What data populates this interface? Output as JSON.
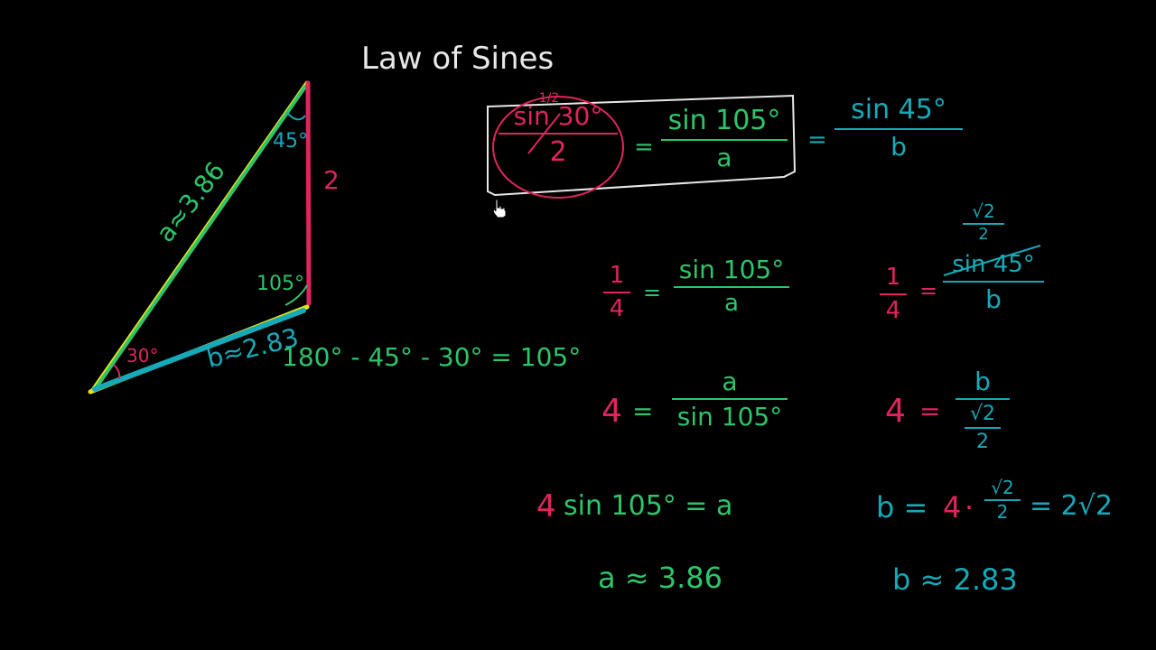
{
  "title": "Law of Sines",
  "colors": {
    "white": "#e8e8e8",
    "green": "#2ec46a",
    "red": "#e0245e",
    "teal": "#16a9b8",
    "yellow": "#e6e61a",
    "background": "#000000"
  },
  "triangle": {
    "side_a_label": "a≈3.86",
    "side_b_label": "b≈2.83",
    "side_c_label": "2",
    "angle_top": "45°",
    "angle_right": "105°",
    "angle_left": "30°",
    "angle_sum": "180° - 45° - 30° = 105°"
  },
  "law": {
    "f1_num": "sin 30°",
    "f1_num_note": "1/2",
    "f1_den": "2",
    "eq1": "=",
    "f2_num": "sin 105°",
    "f2_den": "a",
    "eq2": "=",
    "f3_num": "sin 45°",
    "f3_den": "b"
  },
  "left_steps": {
    "s1_lhs_num": "1",
    "s1_lhs_den": "4",
    "s1_eq": "=",
    "s1_rhs_num": "sin 105°",
    "s1_rhs_den": "a",
    "s2_lhs": "4",
    "s2_eq": "=",
    "s2_rhs_num": "a",
    "s2_rhs_den": "sin 105°",
    "s3_coef": "4",
    "s3_rest": "sin 105° = a",
    "result": "a ≈ 3.86"
  },
  "right_steps": {
    "s1_lhs_num": "1",
    "s1_lhs_den": "4",
    "s1_eq": "=",
    "s1_note_num": "√2",
    "s1_note_den": "2",
    "s1_rhs_num": "sin 45°",
    "s1_rhs_den": "b",
    "s2_lhs": "4",
    "s2_eq": "=",
    "s2_rhs_num": "b",
    "s2_rhs_inner_num": "√2",
    "s2_rhs_inner_den": "2",
    "s3_b": "b =",
    "s3_four": "4",
    "s3_dot": "·",
    "s3_frac_num": "√2",
    "s3_frac_den": "2",
    "s3_result": "= 2√2",
    "result": "b ≈ 2.83"
  }
}
